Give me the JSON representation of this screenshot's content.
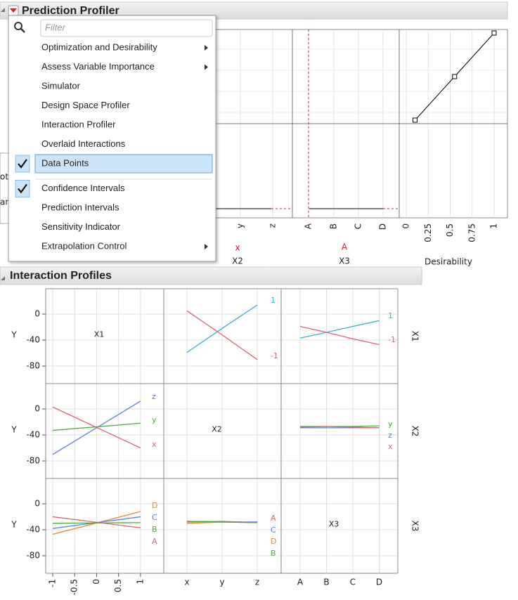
{
  "profiler": {
    "title": "Prediction Profiler",
    "filter_placeholder": "Filter",
    "menu": [
      {
        "label": "Optimization and Desirability",
        "submenu": true
      },
      {
        "label": "Assess Variable Importance",
        "submenu": true
      },
      {
        "label": "Simulator"
      },
      {
        "label": "Design Space Profiler"
      },
      {
        "label": "Interaction Profiler"
      },
      {
        "label": "Overlaid Interactions"
      },
      {
        "label": "Data Points",
        "checked": true,
        "highlighted": true
      },
      {
        "label": "Confidence Intervals",
        "checked": true
      },
      {
        "label": "Prediction Intervals"
      },
      {
        "label": "Sensitivity Indicator"
      },
      {
        "label": "Extrapolation Control",
        "submenu": true
      }
    ],
    "side_text": [
      "ot.",
      "ane"
    ],
    "x2_ticks": [
      "y",
      "z"
    ],
    "x2_current": "x",
    "x2_label": "X2",
    "x3_ticks": [
      "A",
      "B",
      "C",
      "D"
    ],
    "x3_current": "A",
    "x3_label": "X3",
    "desirability_label": "Desirability",
    "desirability_ticks": [
      0,
      0.25,
      0.5,
      0.75,
      1
    ],
    "desirability_curve": {
      "x": [
        0.1,
        0.55,
        1
      ],
      "y": [
        0,
        0.5,
        1
      ]
    },
    "desirability_ylim": [
      -0.04,
      1.04
    ]
  },
  "interaction_profiles": {
    "title": "Interaction Profiles",
    "y_label": "Y",
    "ylim": [
      -107,
      39
    ],
    "yticks": [
      0,
      -40,
      -80
    ],
    "factors": [
      "X1",
      "X2",
      "X3"
    ],
    "x1lim": [
      -1.16,
      1.53
    ],
    "x1ticks": [
      -1,
      -0.5,
      0,
      0.5,
      1
    ],
    "x2_categories": [
      "x",
      "y",
      "z"
    ],
    "x3_categories": [
      "A",
      "B",
      "C",
      "D"
    ],
    "panels": [
      {
        "series": [
          {
            "name": "1",
            "color": "#3aafcf",
            "values": [
              -59,
              -22,
              14
            ]
          },
          {
            "name": "-1",
            "color": "#e0606e",
            "values": [
              5,
              -32,
              -70
            ]
          }
        ]
      },
      {
        "series": [
          {
            "name": "1",
            "color": "#3aafcf",
            "values": [
              -37,
              -28,
              -19,
              -10
            ]
          },
          {
            "name": "-1",
            "color": "#e0606e",
            "values": [
              -19,
              -28,
              -38,
              -47
            ]
          }
        ]
      },
      {
        "x": [
          -1,
          1
        ],
        "series": [
          {
            "name": "z",
            "color": "#5b7fe0",
            "values": [
              -70,
              12
            ]
          },
          {
            "name": "y",
            "color": "#4caa3a",
            "values": [
              -33,
              -22
            ]
          },
          {
            "name": "x",
            "color": "#e0606e",
            "values": [
              3,
              -60
            ]
          }
        ]
      },
      {
        "series": [
          {
            "name": "y",
            "color": "#4caa3a",
            "values": [
              -27,
              -27,
              -27,
              -26
            ]
          },
          {
            "name": "z",
            "color": "#5b7fe0",
            "values": [
              -29,
              -29,
              -29,
              -29
            ]
          },
          {
            "name": "x",
            "color": "#e0606e",
            "values": [
              -28,
              -27,
              -28,
              -29
            ]
          }
        ]
      },
      {
        "x": [
          -1,
          1
        ],
        "series": [
          {
            "name": "D",
            "color": "#e0873a",
            "values": [
              -47,
              -12
            ]
          },
          {
            "name": "C",
            "color": "#5b7fe0",
            "values": [
              -38,
              -20
            ]
          },
          {
            "name": "B",
            "color": "#4caa3a",
            "values": [
              -30,
              -29
            ]
          },
          {
            "name": "A",
            "color": "#e0606e",
            "values": [
              -20,
              -37
            ]
          }
        ]
      },
      {
        "series": [
          {
            "name": "A",
            "color": "#e0606e",
            "values": [
              -28,
              -27,
              -29
            ]
          },
          {
            "name": "C",
            "color": "#5b7fe0",
            "values": [
              -27,
              -28,
              -28
            ]
          },
          {
            "name": "D",
            "color": "#e0873a",
            "values": [
              -30,
              -28,
              -29
            ]
          },
          {
            "name": "B",
            "color": "#4caa3a",
            "values": [
              -27,
              -28,
              -29
            ]
          }
        ]
      }
    ]
  }
}
